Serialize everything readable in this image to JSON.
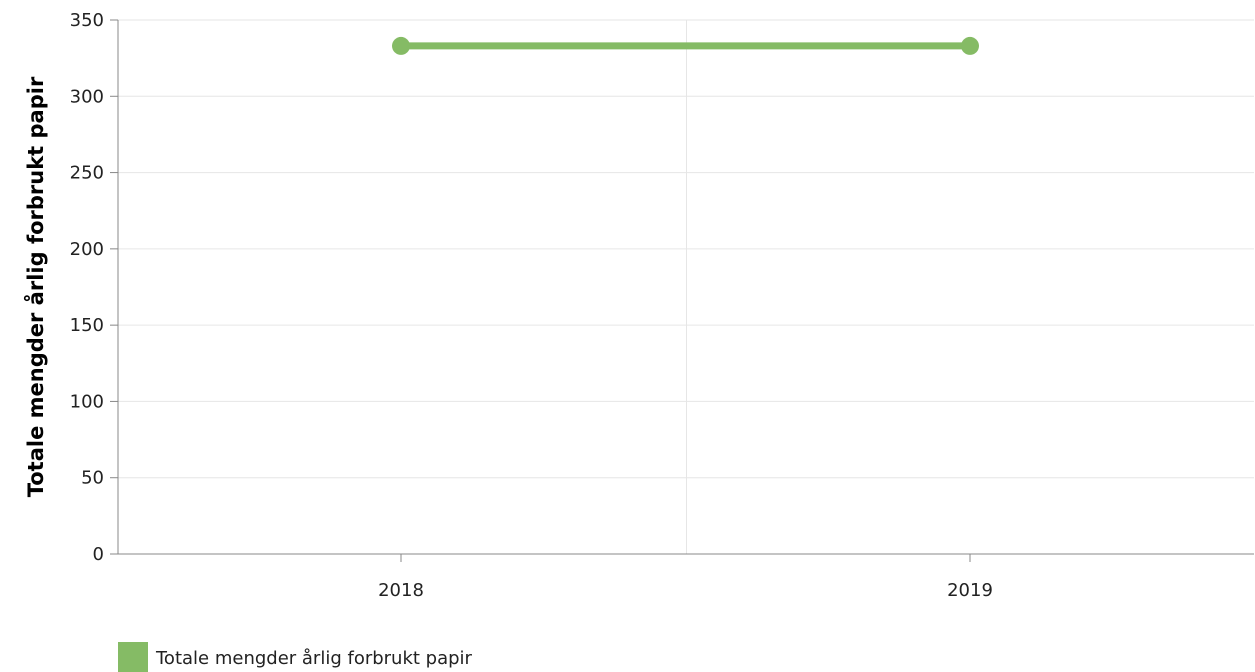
{
  "chart_data": {
    "type": "line",
    "title": "",
    "xlabel": "",
    "ylabel": "Totale mengder årlig forbrukt papir",
    "categories": [
      "2018",
      "2019"
    ],
    "ylim": [
      0,
      350
    ],
    "yticks": [
      0,
      50,
      100,
      150,
      200,
      250,
      300,
      350
    ],
    "grid": true,
    "legend_position": "bottom-left",
    "series": [
      {
        "name": "Totale mengder årlig forbrukt papir",
        "values": [
          333,
          333
        ],
        "color": "#85bb65"
      }
    ]
  }
}
